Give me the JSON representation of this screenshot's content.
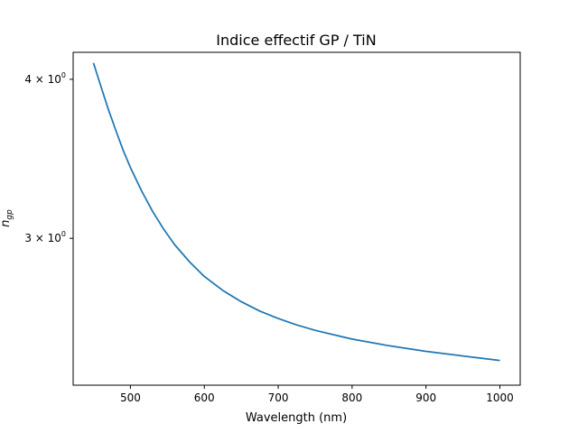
{
  "chart_data": {
    "type": "line",
    "title": "Indice effectif GP / TiN",
    "xlabel": "Wavelength (nm)",
    "ylabel_base": "n",
    "ylabel_sub": "gp",
    "yscale": "log",
    "xlim": [
      422.5,
      1027.5
    ],
    "ylim": [
      2.3,
      4.2
    ],
    "x_ticks": [
      500,
      600,
      700,
      800,
      900,
      1000
    ],
    "x_tick_labels": [
      "500",
      "600",
      "700",
      "800",
      "900",
      "1000"
    ],
    "y_ticks": [
      {
        "value": 4,
        "coef": "4",
        "base": "10",
        "exp": "0"
      },
      {
        "value": 3,
        "coef": "3",
        "base": "10",
        "exp": "0"
      }
    ],
    "series": [
      {
        "name": "n_gp",
        "color": "#1f77b4",
        "x": [
          450,
          460,
          470,
          480,
          490,
          500,
          515,
          530,
          545,
          560,
          580,
          600,
          625,
          650,
          675,
          700,
          725,
          750,
          800,
          850,
          900,
          950,
          1000
        ],
        "y": [
          4.12,
          3.95,
          3.79,
          3.65,
          3.52,
          3.41,
          3.27,
          3.15,
          3.05,
          2.965,
          2.875,
          2.8,
          2.73,
          2.675,
          2.63,
          2.595,
          2.565,
          2.54,
          2.5,
          2.47,
          2.445,
          2.425,
          2.405
        ]
      }
    ]
  }
}
